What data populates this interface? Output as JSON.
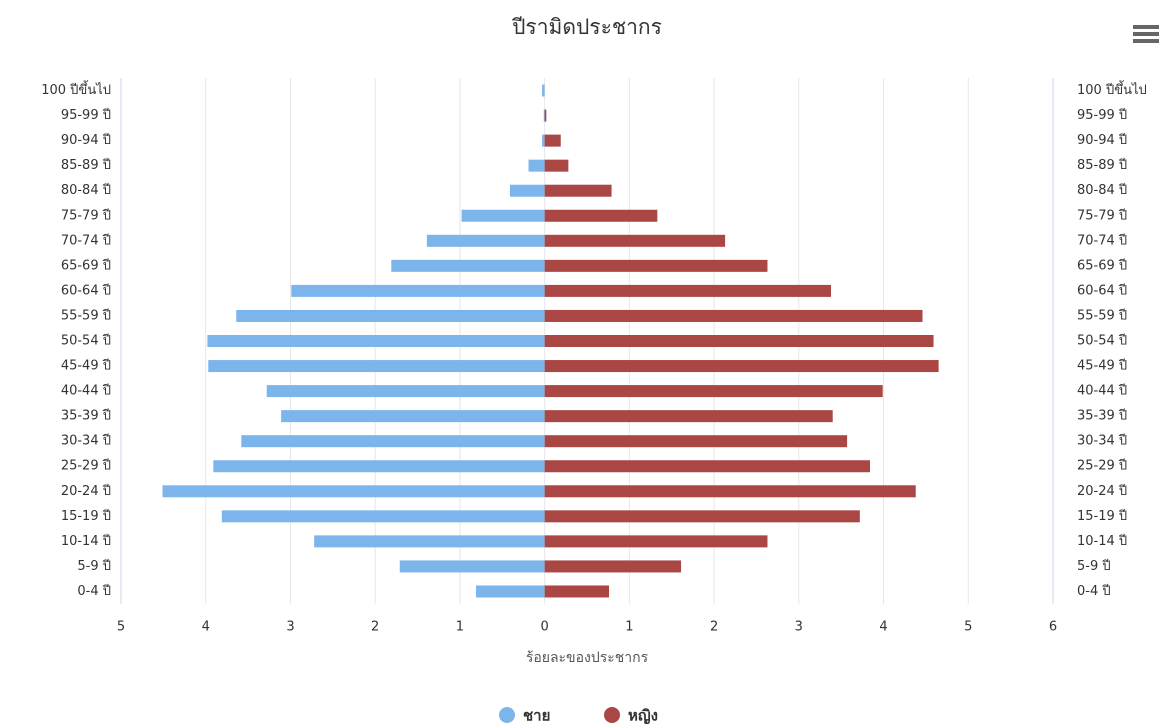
{
  "chart_data": {
    "type": "bar",
    "title": "ปีรามิดประชากร",
    "x_label": "ร้อยละของประชากร",
    "categories": [
      "0-4 ปี",
      "5-9 ปี",
      "10-14 ปี",
      "15-19 ปี",
      "20-24 ปี",
      "25-29 ปี",
      "30-34 ปี",
      "35-39 ปี",
      "40-44 ปี",
      "45-49 ปี",
      "50-54 ปี",
      "55-59 ปี",
      "60-64 ปี",
      "65-69 ปี",
      "70-74 ปี",
      "75-79 ปี",
      "80-84 ปี",
      "85-89 ปี",
      "90-94 ปี",
      "95-99 ปี",
      "100 ปีขึ้นไป"
    ],
    "series": [
      {
        "name": "ชาย",
        "color": "#7cb5ec",
        "values": [
          -0.81,
          -1.71,
          -2.72,
          -3.81,
          -4.51,
          -3.91,
          -3.58,
          -3.11,
          -3.28,
          -3.97,
          -3.98,
          -3.64,
          -2.99,
          -1.81,
          -1.39,
          -0.98,
          -0.41,
          -0.19,
          -0.03,
          -0.01,
          -0.03
        ]
      },
      {
        "name": "หญิง",
        "color": "#aa4643",
        "values": [
          0.76,
          1.61,
          2.63,
          3.72,
          4.38,
          3.84,
          3.57,
          3.4,
          3.99,
          4.65,
          4.59,
          4.46,
          3.38,
          2.63,
          2.13,
          1.33,
          0.79,
          0.28,
          0.19,
          0.02,
          0
        ]
      }
    ],
    "xlim": [
      -5,
      6
    ],
    "xticks": [
      {
        "value": -5,
        "label": "5"
      },
      {
        "value": -4,
        "label": "4"
      },
      {
        "value": -3,
        "label": "3"
      },
      {
        "value": -2,
        "label": "2"
      },
      {
        "value": -1,
        "label": "1"
      },
      0,
      1,
      2,
      3,
      4,
      5,
      6
    ],
    "grid": true
  }
}
